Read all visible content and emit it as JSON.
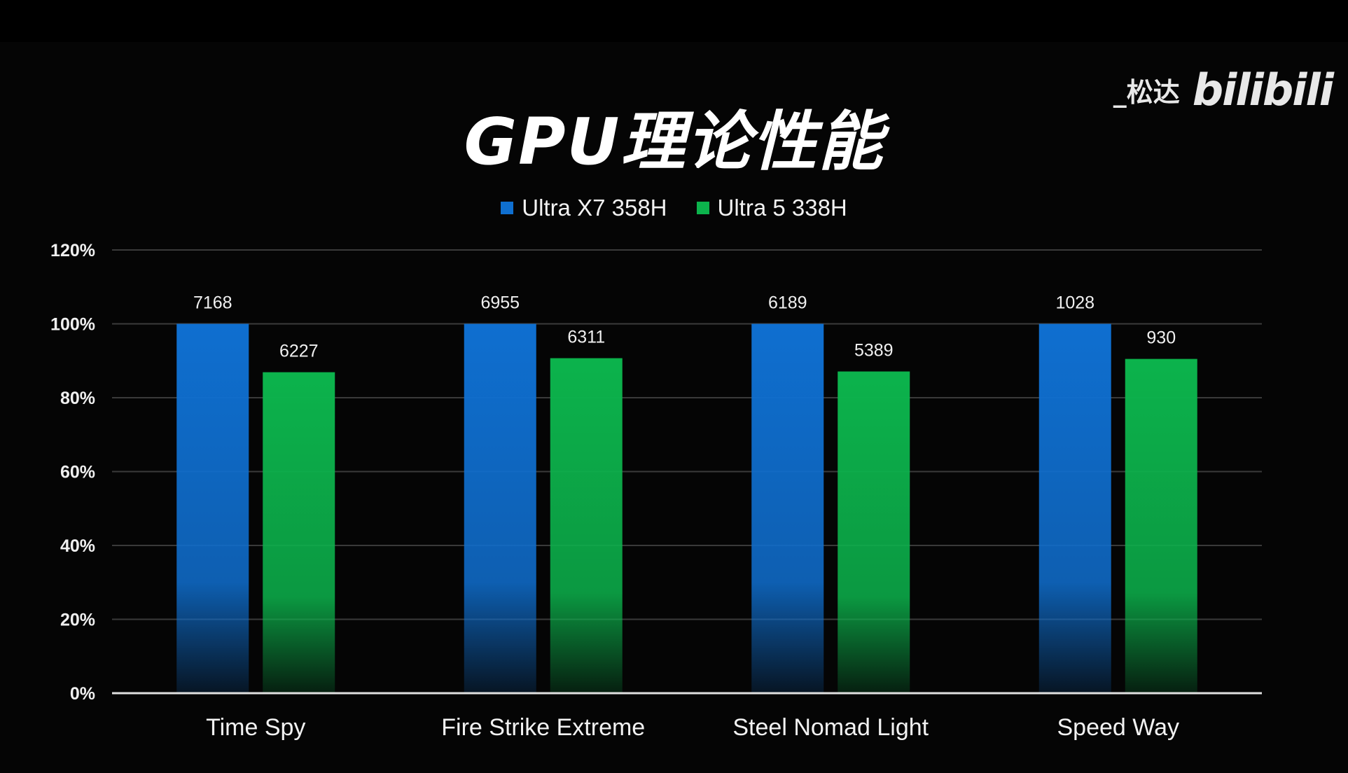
{
  "title": "GPU理论性能",
  "watermark": {
    "user": "_松达",
    "logo": "bilibili"
  },
  "colors": {
    "series_0": "#0f6fd0",
    "series_1": "#0cb34c",
    "grid": "#3a3a3a",
    "axis": "#e0e0e0",
    "background": "#050505"
  },
  "chart_data": {
    "type": "bar",
    "title": "GPU理论性能",
    "categories": [
      "Time Spy",
      "Fire Strike Extreme",
      "Steel Nomad Light",
      "Speed Way"
    ],
    "series": [
      {
        "name": "Ultra X7 358H",
        "values": [
          100,
          100,
          100,
          100
        ],
        "labels": [
          "7168",
          "6955",
          "6189",
          "1028"
        ]
      },
      {
        "name": "Ultra 5 338H",
        "values": [
          86.9,
          90.7,
          87.1,
          90.5
        ],
        "labels": [
          "6227",
          "6311",
          "5389",
          "930"
        ]
      }
    ],
    "yticks": [
      "0%",
      "20%",
      "40%",
      "60%",
      "80%",
      "100%",
      "120%"
    ],
    "ylim": [
      0,
      120
    ],
    "xlabel": "",
    "ylabel": "",
    "grid": true,
    "legend": "top-center"
  }
}
